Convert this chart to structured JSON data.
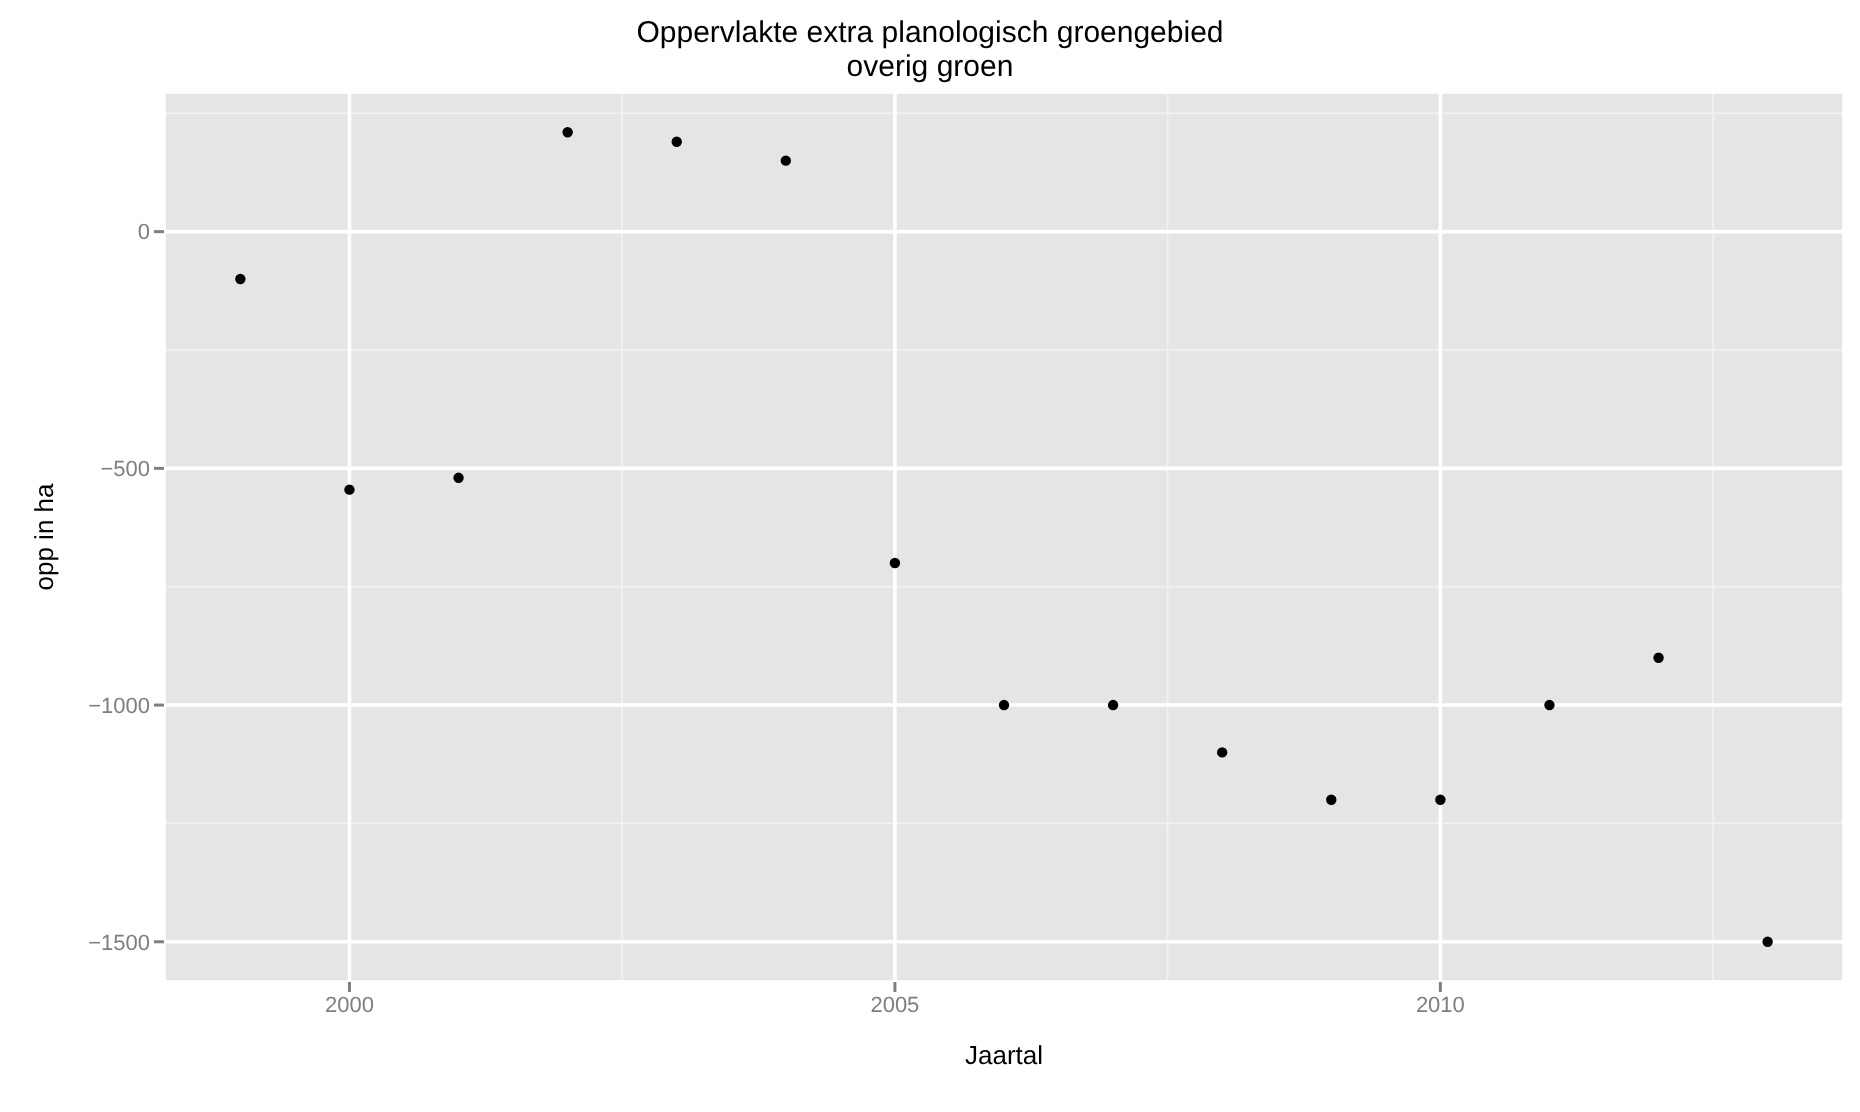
{
  "chart_data": {
    "type": "scatter",
    "title": "Oppervlakte extra planologisch groengebied",
    "subtitle": "overig groen",
    "xlabel": "Jaartal",
    "ylabel": "opp in ha",
    "x": [
      1999,
      2000,
      2001,
      2002,
      2003,
      2004,
      2005,
      2006,
      2007,
      2008,
      2009,
      2010,
      2011,
      2012,
      2013
    ],
    "series": [
      {
        "color": "#000000",
        "values": [
          -100,
          -545,
          -520,
          210,
          190,
          150,
          -700,
          -1000,
          -1000,
          -1100,
          -1200,
          -1200,
          -1000,
          -900,
          -1500
        ]
      }
    ],
    "xlim": [
      1998.3,
      2013.7
    ],
    "xticks": [
      2000,
      2005,
      2010
    ],
    "ylim": [
      -1585,
      295
    ],
    "yticks": [
      -1500,
      -1000,
      -500,
      0
    ],
    "grid": true,
    "marker": "circle"
  }
}
